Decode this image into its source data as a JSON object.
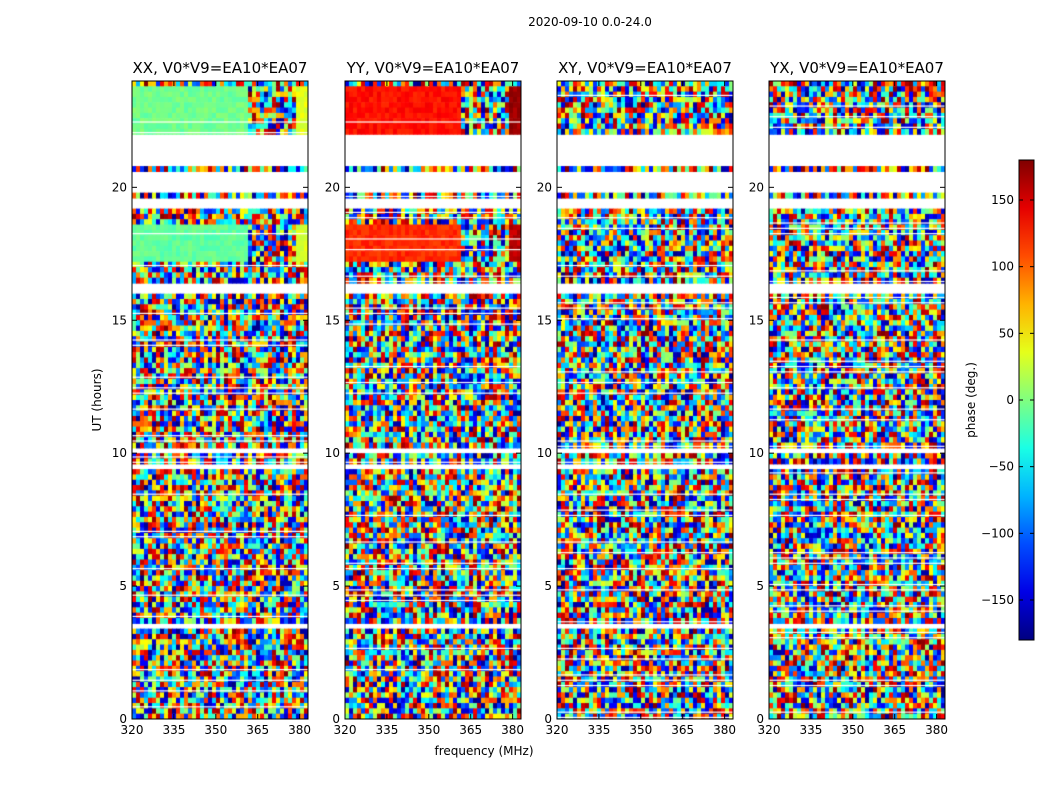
{
  "figure": {
    "suptitle": "2020-09-10 0.0-24.0",
    "ylabel": "UT (hours)",
    "xlabel": "frequency (MHz)"
  },
  "chart_data": {
    "type": "heatmap",
    "x_range": [
      320,
      383
    ],
    "y_range": [
      0,
      24
    ],
    "xticks": [
      320,
      335,
      350,
      365,
      380
    ],
    "yticks": [
      0,
      5,
      10,
      15,
      20
    ],
    "colorbar": {
      "label": "phase (deg.)",
      "range": [
        -180,
        180
      ],
      "ticks": [
        150,
        100,
        50,
        0,
        -50,
        -100,
        -150
      ],
      "tick_labels": [
        "150",
        "100",
        "50",
        "0",
        "−50",
        "−100",
        "−150"
      ],
      "colormap": "jet"
    },
    "flagged_ut_ranges": [
      [
        3.3,
        3.6
      ],
      [
        9.4,
        9.55
      ],
      [
        10.0,
        10.1
      ],
      [
        16.0,
        16.3
      ],
      [
        19.2,
        19.6
      ],
      [
        19.9,
        20.5
      ],
      [
        20.8,
        21.9
      ]
    ],
    "panels": [
      {
        "title": "XX, V0*V9=EA10*EA07",
        "smooth_phase_blocks": [
          {
            "ut": [
              17.1,
              18.6
            ],
            "phase": -10
          },
          {
            "ut": [
              21.9,
              23.8
            ],
            "phase": -5
          }
        ]
      },
      {
        "title": "YY, V0*V9=EA10*EA07",
        "smooth_phase_blocks": [
          {
            "ut": [
              17.1,
              18.6
            ],
            "phase": 120
          },
          {
            "ut": [
              21.9,
              23.8
            ],
            "phase": 130
          }
        ]
      },
      {
        "title": "XY, V0*V9=EA10*EA07",
        "smooth_phase_blocks": []
      },
      {
        "title": "YX, V0*V9=EA10*EA07",
        "smooth_phase_blocks": []
      }
    ]
  }
}
